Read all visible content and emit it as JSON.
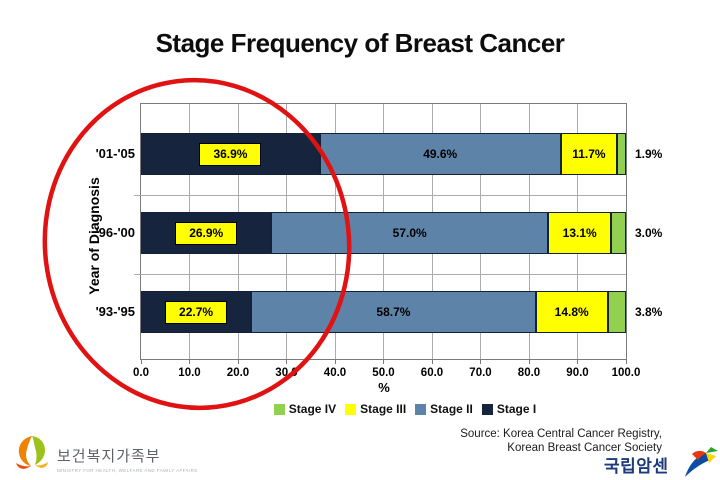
{
  "slide": {
    "title": "Stage Frequency of Breast Cancer",
    "source_line1": "Source: Korea Central Cancer Registry,",
    "source_line2": "Korean Breast Cancer Society"
  },
  "chart_data": {
    "type": "bar",
    "orientation": "horizontal",
    "stacked": true,
    "title": "Stage Frequency of Breast Cancer",
    "xlabel": "%",
    "ylabel": "Year of Diagnosis",
    "xlim": [
      0.0,
      100.0
    ],
    "xticks": [
      "0.0",
      "10.0",
      "20.0",
      "30.0",
      "40.0",
      "50.0",
      "60.0",
      "70.0",
      "80.0",
      "90.0",
      "100.0"
    ],
    "grid": true,
    "legend_position": "bottom",
    "legend_order": [
      "Stage IV",
      "Stage III",
      "Stage II",
      "Stage I"
    ],
    "categories": [
      "'01-'05",
      "'96-'00",
      "'93-'95"
    ],
    "series": [
      {
        "name": "Stage I",
        "color": "#16253d",
        "values": [
          36.9,
          26.9,
          22.7
        ],
        "data_labels": [
          "36.9%",
          "26.9%",
          "22.7%"
        ],
        "label_style": "yellow-box"
      },
      {
        "name": "Stage II",
        "color": "#5e83a9",
        "values": [
          49.6,
          57.0,
          58.7
        ],
        "data_labels": [
          "49.6%",
          "57.0%",
          "58.7%"
        ],
        "label_style": "inside"
      },
      {
        "name": "Stage III",
        "color": "#ffff00",
        "values": [
          11.7,
          13.1,
          14.8
        ],
        "data_labels": [
          "11.7%",
          "13.1%",
          "14.8%"
        ],
        "label_style": "inside"
      },
      {
        "name": "Stage IV",
        "color": "#92d050",
        "values": [
          1.9,
          3.0,
          3.8
        ],
        "data_labels": [
          "1.9%",
          "3.0%",
          "3.8%"
        ],
        "label_style": "outside"
      }
    ]
  },
  "annotation": {
    "shape": "ellipse",
    "color": "#e01212",
    "purpose": "hand-drawn red circle highlighting the Stage I segments"
  },
  "footer": {
    "ministry_logo_text": "보건복지가족부",
    "ministry_logo_subtext": "MINISTRY FOR HEALTH, WELFARE AND FAMILY AFFAIRS",
    "ncc_logo_text": "국립암센터"
  }
}
